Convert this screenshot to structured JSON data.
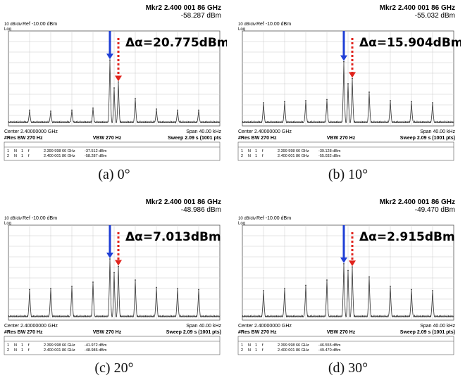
{
  "chart_data": [
    {
      "type": "line",
      "caption": "(a) 0°",
      "delta_label": "Δα=20.775dBm",
      "marker_title": "Mkr2 2.400 001 86 GHz",
      "marker_value": "-58.287 dBm",
      "scale_label": "10 dB/div",
      "log_label": "Log",
      "ref_label": "Ref -10.00 dBm",
      "center_label": "Center 2.40000000 GHz",
      "rbw_label": "#Res BW 270 Hz",
      "vbw_label": "VBW 270 Hz",
      "span_label": "Span 40.00 kHz",
      "sweep_label": "Sweep 2.09 s (1001 pts",
      "marker_rows": [
        {
          "mode": "N",
          "trace": "1",
          "scale": "f",
          "x": "2.399 998 66 GHz",
          "y": "-37.512 dBm"
        },
        {
          "mode": "N",
          "trace": "1",
          "scale": "f",
          "x": "2.400 001 86 GHz",
          "y": "-58.287 dBm"
        }
      ],
      "ylim": [
        -100,
        -10
      ],
      "x_offsets_khz": [
        -16,
        -12,
        -8,
        -4,
        0,
        4,
        8,
        12,
        16
      ],
      "peaks_dbm": [
        -85,
        -86,
        -85,
        -83,
        -64,
        -74,
        -84,
        -85,
        -85
      ],
      "center_peak_dbm": -37.5,
      "right_peak_dbm": -58.3
    },
    {
      "type": "line",
      "caption": "(b) 10°",
      "delta_label": "Δα=15.904dBm",
      "marker_title": "Mkr2 2.400 001 86 GHz",
      "marker_value": "-55.032 dBm",
      "scale_label": "10 dB/div",
      "log_label": "Log",
      "ref_label": "Ref -10.00 dBm",
      "center_label": "Center 2.40000000 GHz",
      "rbw_label": "#Res BW 270 Hz",
      "vbw_label": "VBW 270 Hz",
      "span_label": "Span 40.00 kHz",
      "sweep_label": "Sweep 2.09 s (1001 pts)",
      "marker_rows": [
        {
          "mode": "N",
          "trace": "1",
          "scale": "f",
          "x": "2.399 998 66 GHz",
          "y": "-39.128 dBm"
        },
        {
          "mode": "N",
          "trace": "1",
          "scale": "f",
          "x": "2.400 001 86 GHz",
          "y": "-55.032 dBm"
        }
      ],
      "ylim": [
        -100,
        -10
      ],
      "x_offsets_khz": [
        -16,
        -12,
        -8,
        -4,
        0,
        4,
        8,
        12,
        16
      ],
      "peaks_dbm": [
        -78,
        -77,
        -76,
        -75,
        -60,
        -68,
        -76,
        -77,
        -78
      ],
      "center_peak_dbm": -39.1,
      "right_peak_dbm": -55.0
    },
    {
      "type": "line",
      "caption": "(c) 20°",
      "delta_label": "Δα=7.013dBm",
      "marker_title": "Mkr2 2.400 001 86 GHz",
      "marker_value": "-48.986 dBm",
      "scale_label": "10 dB/div",
      "log_label": "Log",
      "ref_label": "Ref -10.00 dBm",
      "center_label": "Center 2.40000000 GHz",
      "rbw_label": "#Res BW 270 Hz",
      "vbw_label": "VBW 270 Hz",
      "span_label": "Span 40.00 kHz",
      "sweep_label": "Sweep 2.09 s (1001 pts)",
      "marker_rows": [
        {
          "mode": "N",
          "trace": "1",
          "scale": "f",
          "x": "2.399 998 66 GHz",
          "y": "-41.972 dBm"
        },
        {
          "mode": "N",
          "trace": "1",
          "scale": "f",
          "x": "2.400 001 86 GHz",
          "y": "-48.986 dBm"
        }
      ],
      "ylim": [
        -100,
        -10
      ],
      "x_offsets_khz": [
        -16,
        -12,
        -8,
        -4,
        0,
        4,
        8,
        12,
        16
      ],
      "peaks_dbm": [
        -71,
        -70,
        -68,
        -64,
        -55,
        -62,
        -69,
        -70,
        -71
      ],
      "center_peak_dbm": -42.0,
      "right_peak_dbm": -49.0
    },
    {
      "type": "line",
      "caption": "(d) 30°",
      "delta_label": "Δα=2.915dBm",
      "marker_title": "Mkr2 2.400 001 86 GHz",
      "marker_value": "-49.470 dBm",
      "scale_label": "10 dB/div",
      "log_label": "Log",
      "ref_label": "Ref -10.00 dBm",
      "center_label": "Center 2.40000000 GHz",
      "rbw_label": "#Res BW 270 Hz",
      "vbw_label": "VBW 270 Hz",
      "span_label": "Span 40.00 kHz",
      "sweep_label": "Sweep 2.09 s (1001 pts)",
      "marker_rows": [
        {
          "mode": "N",
          "trace": "1",
          "scale": "f",
          "x": "2.399 998 66 GHz",
          "y": "-46.555 dBm"
        },
        {
          "mode": "N",
          "trace": "1",
          "scale": "f",
          "x": "2.400 001 86 GHz",
          "y": "-49.470 dBm"
        }
      ],
      "ylim": [
        -100,
        -10
      ],
      "x_offsets_khz": [
        -16,
        -12,
        -8,
        -4,
        0,
        4,
        8,
        12,
        16
      ],
      "peaks_dbm": [
        -72,
        -70,
        -67,
        -62,
        -53,
        -59,
        -68,
        -71,
        -72
      ],
      "center_peak_dbm": -46.6,
      "right_peak_dbm": -49.5
    }
  ],
  "colors": {
    "down_arrow": "#1f3fd6",
    "dashed_arrow": "#e0231c",
    "trace": "#333333",
    "grid": "#c9c9c9",
    "frame": "#555555"
  }
}
